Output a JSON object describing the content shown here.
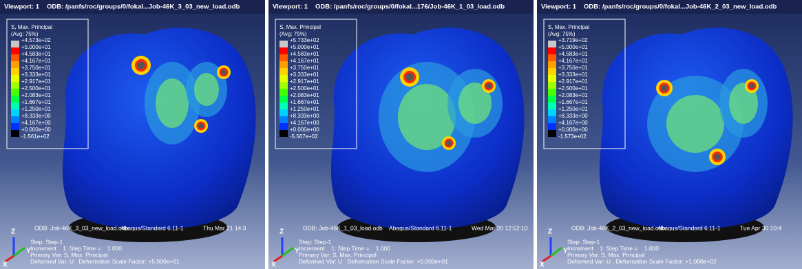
{
  "contour_colors": [
    "#c8c8c8",
    "#ff0000",
    "#ff5a00",
    "#ffa000",
    "#ffd200",
    "#e6ff00",
    "#a0ff00",
    "#46ff00",
    "#00ff46",
    "#00ffb4",
    "#00d2ff",
    "#0082ff",
    "#0032ff",
    "#000000"
  ],
  "viewports": [
    {
      "title": "Viewport: 1",
      "odb_path": "ODB: /panfs/roc/groups/0/fokal...Job-46K_3_03_new_load.odb",
      "legend": {
        "title": "S, Max. Principal",
        "averaging": "(Avg: 75%)",
        "labels": [
          "+4.573e+02",
          "+5.000e+01",
          "+4.583e+01",
          "+4.167e+01",
          "+3.750e+01",
          "+3.333e+01",
          "+2.917e+01",
          "+2.500e+01",
          "+2.083e+01",
          "+1.667e+01",
          "+1.250e+01",
          "+8.333e+00",
          "+4.167e+00",
          "+0.000e+00",
          "-1.561e+02"
        ]
      },
      "footer": {
        "odb": "ODB: Job-46K_3_03_new_load.odb",
        "solver": "Abaqus/Standard 6.11-1",
        "date": "Thu Mar 21 14:3",
        "step": "Step: Step-1",
        "increment": "Increment    1: Step Time =    1.000",
        "primary_var": "Primary Var: S, Max. Principal",
        "deformed_var": "Deformed Var: U   Deformation Scale Factor: +5.000e+01"
      },
      "triad": {
        "z": "Z",
        "y": "Y",
        "x": "X"
      }
    },
    {
      "title": "Viewport: 1",
      "odb_path": "ODB: /panfs/roc/groups/0/fokal...176/Job-46K_1_03_load.odb",
      "legend": {
        "title": "S, Max. Principal",
        "averaging": "(Avg: 75%)",
        "labels": [
          "+5.733e+02",
          "+5.000e+01",
          "+4.583e+01",
          "+4.167e+01",
          "+3.750e+01",
          "+3.333e+01",
          "+2.917e+01",
          "+2.500e+01",
          "+2.083e+01",
          "+1.667e+01",
          "+1.250e+01",
          "+8.333e+00",
          "+4.167e+00",
          "+0.000e+00",
          "-5.567e+02"
        ]
      },
      "footer": {
        "odb": "ODB: Job-46K_1_03_load.odb",
        "solver": "Abaqus/Standard 6.11-1",
        "date": "Wed Mar 20 12:52:10",
        "step": "Step: Step-1",
        "increment": "Increment    1: Step Time =    1.000",
        "primary_var": "Primary Var: S, Max. Principal",
        "deformed_var": "Deformed Var: U   Deformation Scale Factor: +5.000e+01"
      },
      "triad": {
        "z": "Z",
        "y": "Y",
        "x": "X"
      }
    },
    {
      "title": "Viewport: 1",
      "odb_path": "ODB: /panfs/roc/groups/0/fokal...Job-46K_2_03_new_load.odb",
      "legend": {
        "title": "S, Max. Principal",
        "averaging": "(Avg: 75%)",
        "labels": [
          "+3.719e+02",
          "+5.000e+01",
          "+4.583e+01",
          "+4.167e+01",
          "+3.750e+01",
          "+3.333e+01",
          "+2.917e+01",
          "+2.500e+01",
          "+2.083e+01",
          "+1.667e+01",
          "+1.250e+01",
          "+8.333e+00",
          "+4.167e+00",
          "+0.000e+00",
          "-1.573e+02"
        ]
      },
      "footer": {
        "odb": "ODB: Job-46K_2_03_new_load.odb",
        "solver": "Abaqus/Standard 6.11-1",
        "date": "Tue Apr 30 10:4",
        "step": "Step: Step-1",
        "increment": "Increment    1: Step Time =    1.000",
        "primary_var": "Primary Var: S, Max. Principal",
        "deformed_var": "Deformed Var: U   Deformation Scale Factor: +1.000e+02"
      },
      "triad": {
        "z": "Z",
        "y": "Y",
        "x": "X"
      }
    }
  ]
}
